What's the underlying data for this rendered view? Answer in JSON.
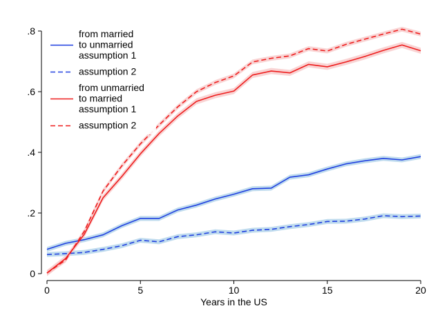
{
  "chart_data": {
    "type": "line",
    "xlabel": "Years in the US",
    "ylabel": "",
    "xlim": [
      0,
      20
    ],
    "ylim": [
      0,
      0.8
    ],
    "xticks": [
      {
        "value": 0,
        "label": "0"
      },
      {
        "value": 5,
        "label": "5"
      },
      {
        "value": 10,
        "label": "10"
      },
      {
        "value": 15,
        "label": "15"
      },
      {
        "value": 20,
        "label": "20"
      }
    ],
    "yticks": [
      {
        "value": 0,
        "label": "0"
      },
      {
        "value": 0.2,
        "label": ".2"
      },
      {
        "value": 0.4,
        "label": ".4"
      },
      {
        "value": 0.6,
        "label": ".6"
      },
      {
        "value": 0.8,
        "label": ".8"
      }
    ],
    "grid": false,
    "legend_position": "top-left",
    "x": [
      0,
      1,
      2,
      3,
      4,
      5,
      6,
      7,
      8,
      9,
      10,
      11,
      12,
      13,
      14,
      15,
      16,
      17,
      18,
      19,
      20
    ],
    "series": [
      {
        "legend_lines": [
          "from married",
          "to unmarried",
          "assumption 1"
        ],
        "color": "#1f3fe0",
        "band_color": "#a9cfe8",
        "dashed": false,
        "values": [
          0.08,
          0.1,
          0.112,
          0.128,
          0.158,
          0.182,
          0.182,
          0.21,
          0.226,
          0.246,
          0.262,
          0.28,
          0.282,
          0.318,
          0.326,
          0.345,
          0.362,
          0.372,
          0.38,
          0.375,
          0.386
        ],
        "band": 0.008
      },
      {
        "legend_lines": [
          "assumption 2"
        ],
        "color": "#1f3fe0",
        "band_color": "#a9cfe8",
        "dashed": true,
        "values": [
          0.063,
          0.066,
          0.07,
          0.08,
          0.092,
          0.11,
          0.105,
          0.122,
          0.128,
          0.138,
          0.134,
          0.143,
          0.146,
          0.155,
          0.162,
          0.172,
          0.173,
          0.18,
          0.191,
          0.188,
          0.19
        ],
        "band": 0.008
      },
      {
        "legend_lines": [
          "from unmarried",
          "to married",
          "assumption 1"
        ],
        "color": "#ee1c1c",
        "band_color": "#f7c6c6",
        "dashed": false,
        "values": [
          0.002,
          0.05,
          0.13,
          0.25,
          0.32,
          0.395,
          0.462,
          0.52,
          0.568,
          0.588,
          0.602,
          0.655,
          0.668,
          0.662,
          0.69,
          0.682,
          0.698,
          0.716,
          0.736,
          0.754,
          0.735
        ],
        "band": 0.01
      },
      {
        "legend_lines": [
          "assumption 2"
        ],
        "color": "#ee1c1c",
        "band_color": "#f7c6c6",
        "dashed": true,
        "values": [
          0.002,
          0.045,
          0.14,
          0.272,
          0.355,
          0.428,
          0.49,
          0.55,
          0.6,
          0.63,
          0.652,
          0.698,
          0.71,
          0.718,
          0.742,
          0.734,
          0.756,
          0.773,
          0.79,
          0.806,
          0.79
        ],
        "band": 0.008
      }
    ]
  }
}
